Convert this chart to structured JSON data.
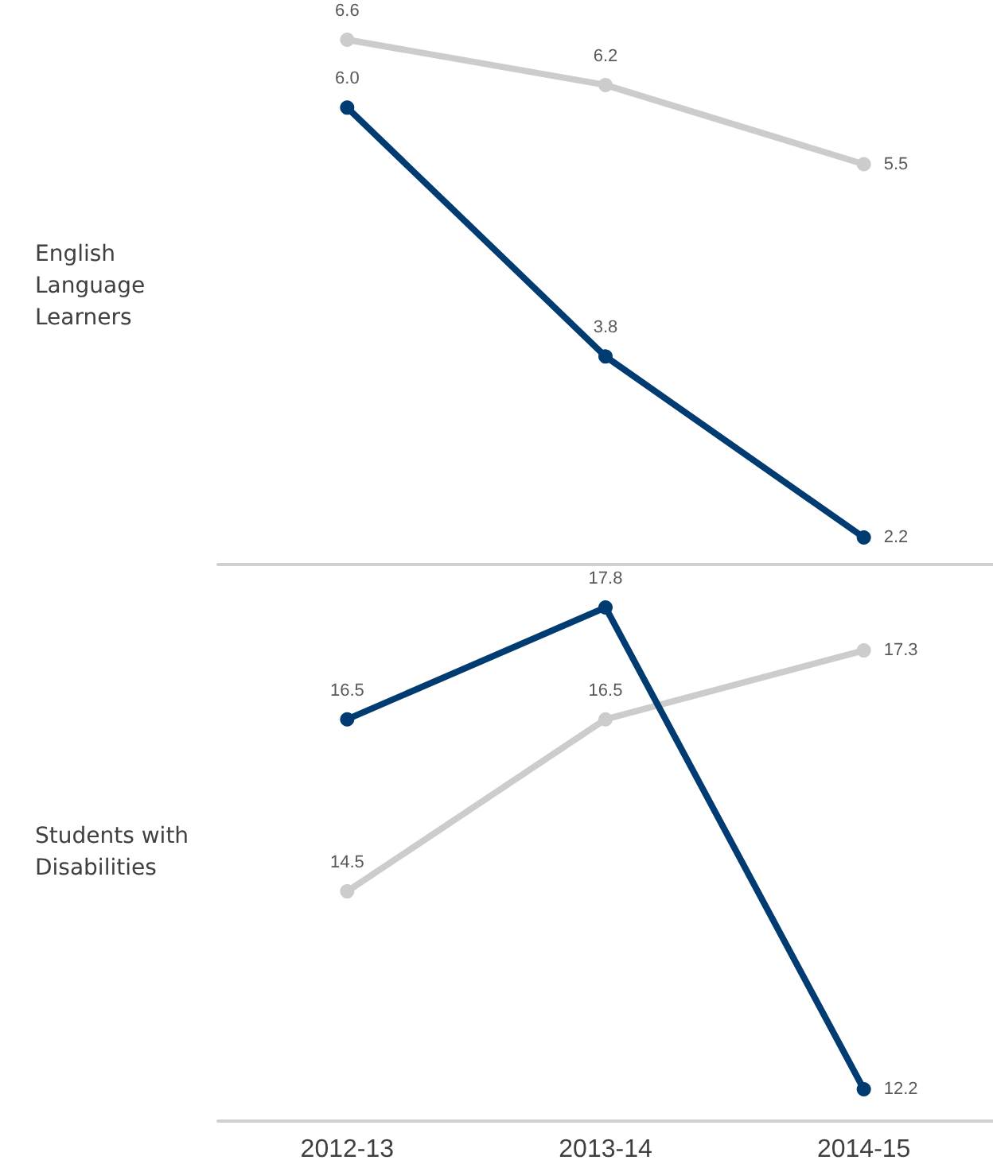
{
  "chart_data": [
    {
      "type": "line",
      "ylabel": "English Language Learners",
      "categories": [
        "2012-13",
        "2013-14",
        "2014-15"
      ],
      "series": [
        {
          "color": "#cccccc",
          "values": [
            6.6,
            6.2,
            5.5
          ],
          "value_labels": [
            "6.6",
            "6.2",
            "5.5"
          ]
        },
        {
          "color": "#003b71",
          "values": [
            6.0,
            3.8,
            2.2
          ],
          "value_labels": [
            "6.0",
            "3.8",
            "2.2"
          ]
        }
      ],
      "marker": "circle",
      "tick_labels": false
    },
    {
      "type": "line",
      "ylabel": "Students with Disabilities",
      "categories": [
        "2012-13",
        "2013-14",
        "2014-15"
      ],
      "series": [
        {
          "color": "#cccccc",
          "values": [
            14.5,
            16.5,
            17.3
          ],
          "value_labels": [
            "14.5",
            "16.5",
            "17.3"
          ]
        },
        {
          "color": "#003b71",
          "values": [
            16.5,
            17.8,
            12.2
          ],
          "value_labels": [
            "16.5",
            "17.8",
            "12.2"
          ]
        }
      ],
      "marker": "circle",
      "tick_labels": "x"
    }
  ]
}
